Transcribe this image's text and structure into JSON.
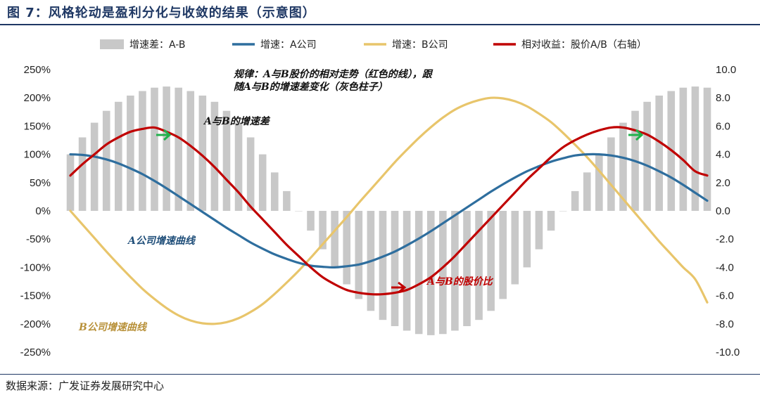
{
  "figure": {
    "title": "图 7：风格轮动是盈利分化与收敛的结果（示意图）",
    "source": "数据来源：广发证券发展研究中心"
  },
  "chart_data": {
    "type": "bar+line",
    "x": [
      0,
      1,
      2,
      3,
      4,
      5,
      6,
      7,
      8,
      9,
      10,
      11,
      12,
      13,
      14,
      15,
      16,
      17,
      18,
      19,
      20,
      21,
      22,
      23,
      24,
      25,
      26,
      27,
      28,
      29,
      30,
      31,
      32,
      33,
      34,
      35,
      36,
      37,
      38,
      39,
      40,
      41,
      42,
      43,
      44,
      45,
      46,
      47,
      48,
      49,
      50,
      51,
      52,
      53
    ],
    "series": [
      {
        "name": "增速差：A-B",
        "type": "bar",
        "axis": "left",
        "color": "#c8c8c8",
        "values": [
          1.0,
          1.3,
          1.56,
          1.77,
          1.93,
          2.04,
          2.12,
          2.18,
          2.2,
          2.18,
          2.12,
          2.04,
          1.93,
          1.77,
          1.56,
          1.3,
          1.0,
          0.68,
          0.35,
          0.0,
          -0.35,
          -0.68,
          -1.0,
          -1.3,
          -1.56,
          -1.77,
          -1.93,
          -2.04,
          -2.12,
          -2.18,
          -2.2,
          -2.18,
          -2.12,
          -2.04,
          -1.93,
          -1.77,
          -1.56,
          -1.3,
          -1.0,
          -0.68,
          -0.35,
          0.0,
          0.35,
          0.68,
          1.0,
          1.3,
          1.56,
          1.77,
          1.93,
          2.04,
          2.12,
          2.18,
          2.2,
          2.18
        ]
      },
      {
        "name": "增速：A公司",
        "type": "line",
        "axis": "left",
        "color": "#2e6e9e",
        "values": [
          1.0,
          0.99,
          0.96,
          0.91,
          0.84,
          0.75,
          0.65,
          0.53,
          0.4,
          0.26,
          0.12,
          -0.02,
          -0.16,
          -0.3,
          -0.43,
          -0.56,
          -0.67,
          -0.77,
          -0.85,
          -0.92,
          -0.97,
          -0.99,
          -1.0,
          -0.98,
          -0.95,
          -0.89,
          -0.81,
          -0.72,
          -0.61,
          -0.49,
          -0.36,
          -0.22,
          -0.08,
          0.06,
          0.2,
          0.34,
          0.47,
          0.59,
          0.7,
          0.79,
          0.87,
          0.93,
          0.98,
          1.0,
          1.0,
          0.98,
          0.94,
          0.88,
          0.8,
          0.7,
          0.59,
          0.46,
          0.32,
          0.18
        ]
      },
      {
        "name": "增速：B公司",
        "type": "line",
        "axis": "left",
        "color": "#e8c56b",
        "values": [
          0.0,
          -0.24,
          -0.48,
          -0.72,
          -0.95,
          -1.17,
          -1.38,
          -1.56,
          -1.72,
          -1.85,
          -1.94,
          -1.99,
          -2.0,
          -1.97,
          -1.9,
          -1.79,
          -1.65,
          -1.47,
          -1.27,
          -1.06,
          -0.83,
          -0.59,
          -0.35,
          -0.11,
          0.14,
          0.38,
          0.62,
          0.86,
          1.08,
          1.29,
          1.48,
          1.65,
          1.79,
          1.89,
          1.96,
          2.0,
          1.99,
          1.94,
          1.85,
          1.72,
          1.57,
          1.38,
          1.17,
          0.95,
          0.71,
          0.46,
          0.21,
          -0.04,
          -0.29,
          -0.54,
          -0.77,
          -1.0,
          -1.21,
          -1.62
        ]
      },
      {
        "name": "相对收益：股价A/B（右轴）",
        "type": "line",
        "axis": "right",
        "color": "#c00000",
        "values": [
          2.5,
          3.3,
          4.0,
          4.7,
          5.2,
          5.6,
          5.8,
          5.9,
          5.6,
          5.2,
          4.6,
          3.9,
          3.1,
          2.2,
          1.3,
          0.3,
          -0.6,
          -1.5,
          -2.4,
          -3.2,
          -4.0,
          -4.7,
          -5.2,
          -5.6,
          -5.8,
          -5.9,
          -5.9,
          -5.8,
          -5.6,
          -5.2,
          -4.7,
          -4.0,
          -3.2,
          -2.3,
          -1.4,
          -0.5,
          0.4,
          1.3,
          2.2,
          3.0,
          3.8,
          4.5,
          5.0,
          5.4,
          5.7,
          5.9,
          5.9,
          5.7,
          5.4,
          4.9,
          4.3,
          3.6,
          2.8,
          2.5
        ]
      }
    ],
    "y_left": {
      "ticks": [
        "250%",
        "200%",
        "150%",
        "100%",
        "50%",
        "0%",
        "-50%",
        "-100%",
        "-150%",
        "-200%",
        "-250%"
      ],
      "ylim": [
        -2.5,
        2.5
      ]
    },
    "y_right": {
      "ticks": [
        "10.0",
        "8.0",
        "6.0",
        "4.0",
        "2.0",
        "0.0",
        "-2.0",
        "-4.0",
        "-6.0",
        "-8.0",
        "-10.0"
      ],
      "ylim": [
        -10,
        10
      ]
    },
    "legend": {
      "position": "top",
      "items": [
        {
          "label": "增速差：A-B",
          "kind": "bar",
          "color": "#c8c8c8"
        },
        {
          "label": "增速：A公司",
          "kind": "line",
          "color": "#2e6e9e"
        },
        {
          "label": "增速：B公司",
          "kind": "line",
          "color": "#e8c56b"
        },
        {
          "label": "相对收益：股价A/B（右轴）",
          "kind": "line",
          "color": "#c00000"
        }
      ]
    },
    "annotations": [
      {
        "text_line1": "规律：A与B股价的相对走势（红色的线），跟",
        "text_line2": "随A与B的增速差变化（灰色柱子）",
        "color": "#111111"
      },
      {
        "text": "A与B的增速差",
        "color": "#111111"
      },
      {
        "text": "A公司增速曲线",
        "color": "#1f4e79"
      },
      {
        "text": "B公司增速曲线",
        "color": "#b8913a"
      },
      {
        "text": "A与B的股价比",
        "color": "#c00000"
      }
    ],
    "grid": false
  }
}
